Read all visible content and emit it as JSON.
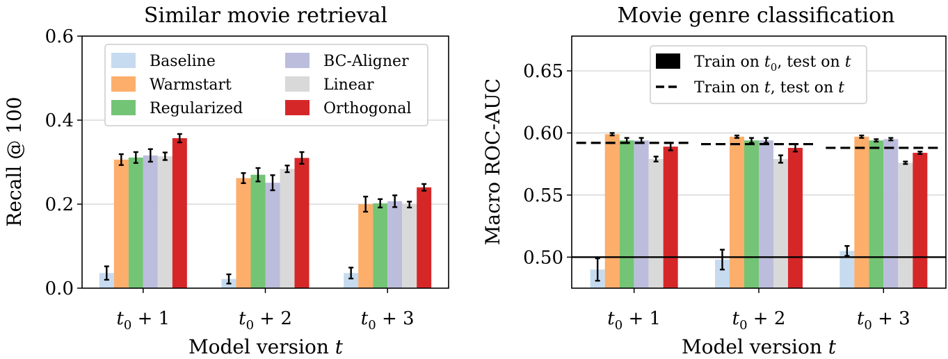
{
  "chart_data": [
    {
      "type": "bar",
      "title": "Similar movie retrieval",
      "xlabel": "Model version t",
      "ylabel": "Recall @ 100",
      "ylim": [
        0,
        0.6
      ],
      "yticks": [
        "0.0",
        "0.2",
        "0.4",
        "0.6"
      ],
      "categories": [
        "t0 + 1",
        "t0 + 2",
        "t0 + 3"
      ],
      "grid": "horizontal",
      "legend_position": "top-center",
      "legend_columns": 2,
      "series": [
        {
          "name": "Baseline",
          "color": "#c6dbef",
          "values": [
            0.036,
            0.022,
            0.036
          ],
          "errors": [
            0.016,
            0.011,
            0.013
          ]
        },
        {
          "name": "Warmstart",
          "color": "#fdae6b",
          "values": [
            0.306,
            0.262,
            0.2
          ],
          "errors": [
            0.013,
            0.012,
            0.018
          ]
        },
        {
          "name": "Regularized",
          "color": "#74c476",
          "values": [
            0.311,
            0.27,
            0.202
          ],
          "errors": [
            0.013,
            0.016,
            0.01
          ]
        },
        {
          "name": "BC-Aligner",
          "color": "#bcbddc",
          "values": [
            0.316,
            0.251,
            0.207
          ],
          "errors": [
            0.015,
            0.018,
            0.014
          ]
        },
        {
          "name": "Linear",
          "color": "#d9d9d9",
          "values": [
            0.314,
            0.284,
            0.199
          ],
          "errors": [
            0.009,
            0.008,
            0.007
          ]
        },
        {
          "name": "Orthogonal",
          "color": "#d62728",
          "values": [
            0.357,
            0.31,
            0.24
          ],
          "errors": [
            0.01,
            0.014,
            0.008
          ]
        }
      ]
    },
    {
      "type": "bar",
      "title": "Movie genre classification",
      "xlabel": "Model version t",
      "ylabel": "Macro ROC-AUC",
      "ylim": [
        0.475,
        0.678
      ],
      "yticks": [
        "0.50",
        "0.55",
        "0.60",
        "0.65"
      ],
      "categories": [
        "t0 + 1",
        "t0 + 2",
        "t0 + 3"
      ],
      "grid": "horizontal",
      "legend_position": "top-center",
      "reference_line": {
        "label": "Train on t0, test on t",
        "value": 0.5
      },
      "dashed_reference": {
        "label": "Train on t, test on t",
        "values": [
          0.592,
          0.591,
          0.588
        ]
      },
      "series": [
        {
          "name": "Baseline",
          "color": "#c6dbef",
          "values": [
            0.49,
            0.498,
            0.505
          ],
          "errors": [
            0.009,
            0.008,
            0.004
          ]
        },
        {
          "name": "Warmstart",
          "color": "#fdae6b",
          "values": [
            0.599,
            0.597,
            0.597
          ],
          "errors": [
            0.001,
            0.001,
            0.001
          ]
        },
        {
          "name": "Regularized",
          "color": "#74c476",
          "values": [
            0.594,
            0.594,
            0.594
          ],
          "errors": [
            0.002,
            0.002,
            0.001
          ]
        },
        {
          "name": "BC-Aligner",
          "color": "#bcbddc",
          "values": [
            0.594,
            0.594,
            0.595
          ],
          "errors": [
            0.002,
            0.002,
            0.001
          ]
        },
        {
          "name": "Linear",
          "color": "#d9d9d9",
          "values": [
            0.579,
            0.579,
            0.576
          ],
          "errors": [
            0.002,
            0.003,
            0.001
          ]
        },
        {
          "name": "Orthogonal",
          "color": "#d62728",
          "values": [
            0.589,
            0.588,
            0.584
          ],
          "errors": [
            0.003,
            0.003,
            0.001
          ]
        }
      ]
    }
  ],
  "legend_right": {
    "solid_label_pre": "Train on ",
    "solid_sub": "0",
    "solid_label_post": ", test on ",
    "dashed_label": "Train on ",
    "dashed_mid": ", test on ",
    "var": "t",
    "var_base": "t"
  },
  "xlabel_parts": {
    "text": "Model version ",
    "var": "t"
  }
}
